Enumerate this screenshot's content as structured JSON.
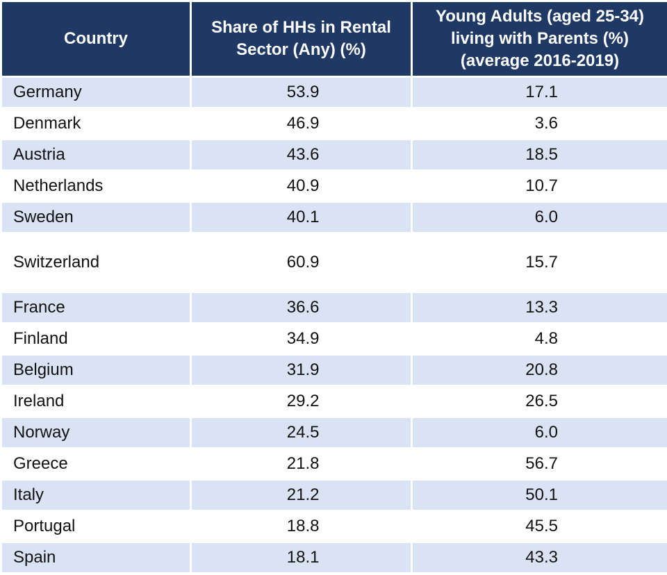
{
  "headers": {
    "country": "Country",
    "rental": [
      "Share of HHs in Rental",
      "Sector (Any) (%)"
    ],
    "young": [
      "Young Adults (aged 25-34)",
      "living with Parents (%)",
      "(average 2016-2019)"
    ]
  },
  "rows": [
    {
      "country": "Germany",
      "rental": "53.9",
      "young": "17.1"
    },
    {
      "country": "Denmark",
      "rental": "46.9",
      "young": "3.6"
    },
    {
      "country": "Austria",
      "rental": "43.6",
      "young": "18.5"
    },
    {
      "country": "Netherlands",
      "rental": "40.9",
      "young": "10.7"
    },
    {
      "country": "Sweden",
      "rental": "40.1",
      "young": "6.0"
    },
    {
      "country": "Switzerland",
      "rental": "60.9",
      "young": "15.7"
    },
    {
      "country": "France",
      "rental": "36.6",
      "young": "13.3"
    },
    {
      "country": "Finland",
      "rental": "34.9",
      "young": "4.8"
    },
    {
      "country": "Belgium",
      "rental": "31.9",
      "young": "20.8"
    },
    {
      "country": "Ireland",
      "rental": "29.2",
      "young": "26.5"
    },
    {
      "country": "Norway",
      "rental": "24.5",
      "young": "6.0"
    },
    {
      "country": "Greece",
      "rental": "21.8",
      "young": "56.7"
    },
    {
      "country": "Italy",
      "rental": "21.2",
      "young": "50.1"
    },
    {
      "country": "Portugal",
      "rental": "18.8",
      "young": "45.5"
    },
    {
      "country": "Spain",
      "rental": "18.1",
      "young": "43.3"
    }
  ],
  "colors": {
    "header_bg": "#1f3864",
    "band_bg": "#dae3f3",
    "plain_bg": "#ffffff"
  }
}
